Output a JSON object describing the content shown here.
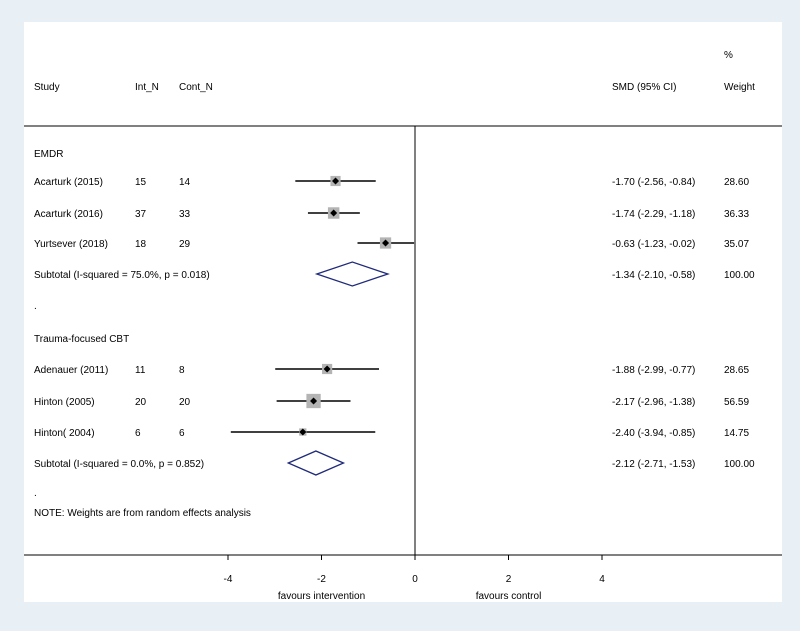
{
  "chart_data": {
    "type": "forest",
    "headers": {
      "study": "Study",
      "int_n": "Int_N",
      "cont_n": "Cont_N",
      "smd": "SMD (95% CI)",
      "weight_symbol": "%",
      "weight": "Weight"
    },
    "xlim": [
      -6,
      6
    ],
    "ticks": [
      {
        "value": -4,
        "label": "-4"
      },
      {
        "value": -2,
        "label": "-2"
      },
      {
        "value": 0,
        "label": "0"
      },
      {
        "value": 2,
        "label": "2"
      },
      {
        "value": 4,
        "label": "4"
      }
    ],
    "xlabel_left": "favours intervention",
    "xlabel_right": "favours control",
    "groups": [
      {
        "name": "EMDR",
        "studies": [
          {
            "study": "Acarturk (2015)",
            "int_n": "15",
            "cont_n": "14",
            "smd": -1.7,
            "lower": -2.56,
            "upper": -0.84,
            "ci_text": "-1.70 (-2.56, -0.84)",
            "weight": 28.6,
            "weight_text": "28.60"
          },
          {
            "study": "Acarturk (2016)",
            "int_n": "37",
            "cont_n": "33",
            "smd": -1.74,
            "lower": -2.29,
            "upper": -1.18,
            "ci_text": "-1.74 (-2.29, -1.18)",
            "weight": 36.33,
            "weight_text": "36.33"
          },
          {
            "study": "Yurtsever (2018)",
            "int_n": "18",
            "cont_n": "29",
            "smd": -0.63,
            "lower": -1.23,
            "upper": -0.02,
            "ci_text": "-0.63 (-1.23, -0.02)",
            "weight": 35.07,
            "weight_text": "35.07"
          }
        ],
        "subtotal": {
          "label": "Subtotal  (I-squared = 75.0%, p = 0.018)",
          "smd": -1.34,
          "lower": -2.1,
          "upper": -0.58,
          "ci_text": "-1.34 (-2.10, -0.58)",
          "weight_text": "100.00"
        }
      },
      {
        "name": "Trauma-focused CBT",
        "studies": [
          {
            "study": "Adenauer (2011)",
            "int_n": "11",
            "cont_n": "8",
            "smd": -1.88,
            "lower": -2.99,
            "upper": -0.77,
            "ci_text": "-1.88 (-2.99, -0.77)",
            "weight": 28.65,
            "weight_text": "28.65"
          },
          {
            "study": "Hinton (2005)",
            "int_n": "20",
            "cont_n": "20",
            "smd": -2.17,
            "lower": -2.96,
            "upper": -1.38,
            "ci_text": "-2.17 (-2.96, -1.38)",
            "weight": 56.59,
            "weight_text": "56.59"
          },
          {
            "study": "Hinton( 2004)",
            "int_n": "6",
            "cont_n": "6",
            "smd": -2.4,
            "lower": -3.94,
            "upper": -0.85,
            "ci_text": "-2.40 (-3.94, -0.85)",
            "weight": 14.75,
            "weight_text": "14.75"
          }
        ],
        "subtotal": {
          "label": "Subtotal  (I-squared = 0.0%, p = 0.852)",
          "smd": -2.12,
          "lower": -2.71,
          "upper": -1.53,
          "ci_text": "-2.12 (-2.71, -1.53)",
          "weight_text": "100.00"
        }
      }
    ],
    "separator": ".",
    "note": "NOTE: Weights are from random effects analysis",
    "colors": {
      "box": "#b4b4b4",
      "diamond": "#1f2a7a",
      "line": "#000000"
    }
  }
}
